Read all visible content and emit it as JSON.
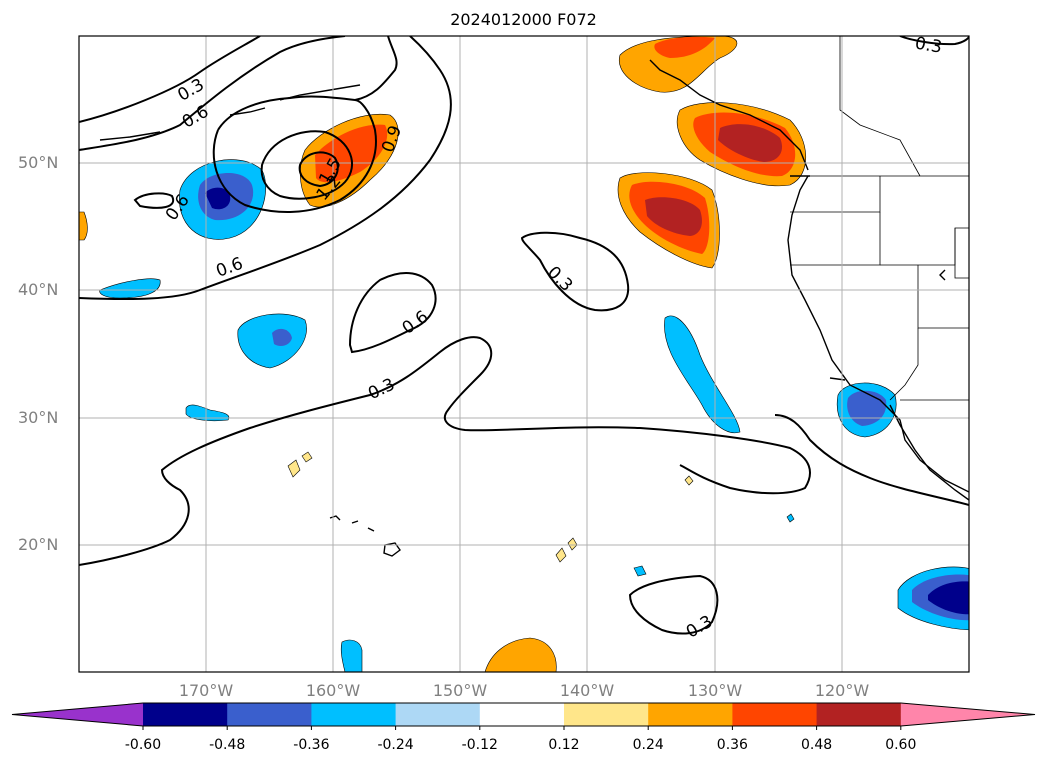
{
  "title": "2024012000 F072",
  "lat_labels": [
    "50°N",
    "40°N",
    "30°N",
    "20°N"
  ],
  "lon_labels": [
    "170°W",
    "160°W",
    "150°W",
    "140°W",
    "130°W",
    "120°W"
  ],
  "contour_labels": [
    "0.3",
    "0.6",
    "0.9",
    "1.2",
    "1.5",
    "0.6",
    "0.6",
    "0.3",
    "0.6",
    "0.3",
    "0.3",
    "0.3"
  ],
  "colorbar": {
    "ticks": [
      "-0.60",
      "-0.48",
      "-0.36",
      "-0.24",
      "-0.12",
      "0.12",
      "0.24",
      "0.36",
      "0.48",
      "0.60"
    ],
    "colors": [
      "#9932cc",
      "#00008b",
      "#3a5fcd",
      "#00bfff",
      "#add8f5",
      "#ffffff",
      "#ffe68a",
      "#ffa500",
      "#ff4500",
      "#b22222",
      "#ff85aa"
    ]
  }
}
